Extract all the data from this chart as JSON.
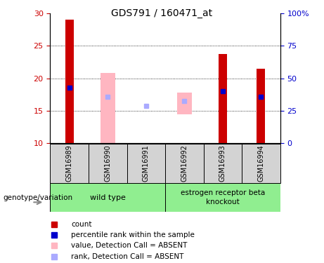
{
  "title": "GDS791 / 160471_at",
  "samples": [
    "GSM16989",
    "GSM16990",
    "GSM16991",
    "GSM16992",
    "GSM16993",
    "GSM16994"
  ],
  "red_bars": [
    29.0,
    null,
    null,
    null,
    23.7,
    21.5
  ],
  "blue_markers": [
    18.5,
    null,
    null,
    null,
    18.0,
    17.2
  ],
  "pink_bars_bottom": [
    10,
    10,
    14.5,
    14.5,
    10,
    10
  ],
  "pink_bars_top": [
    10,
    20.8,
    14.5,
    17.8,
    10,
    10
  ],
  "light_blue_markers": [
    null,
    17.2,
    15.8,
    16.5,
    null,
    null
  ],
  "ylim": [
    10,
    30
  ],
  "yticks_left": [
    10,
    15,
    20,
    25,
    30
  ],
  "yticks_right": [
    0,
    25,
    50,
    75,
    100
  ],
  "yticklabels_right": [
    "0",
    "25",
    "50",
    "75",
    "100%"
  ],
  "red_color": "#CC0000",
  "blue_color": "#0000CC",
  "pink_color": "#FFB6C1",
  "light_blue_color": "#AAAAFF",
  "bg_label": "#D3D3D3",
  "bg_green": "#90EE90",
  "legend_labels": [
    "count",
    "percentile rank within the sample",
    "value, Detection Call = ABSENT",
    "rank, Detection Call = ABSENT"
  ],
  "genotype_label": "genotype/variation",
  "wt_label": "wild type",
  "ko_label": "estrogen receptor beta\nknockout"
}
